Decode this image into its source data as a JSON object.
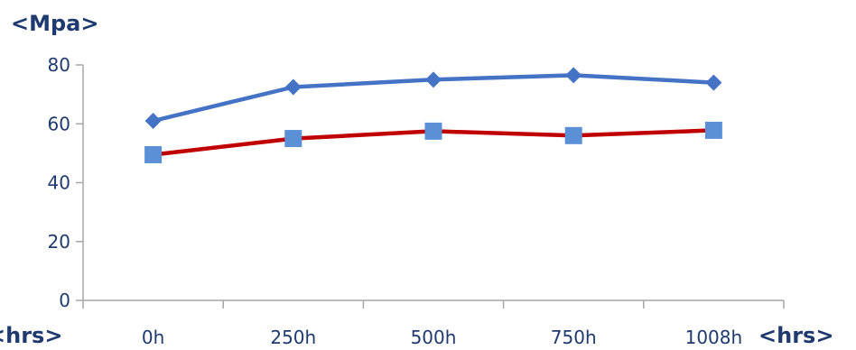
{
  "chart_data": {
    "type": "line",
    "categories": [
      "0h",
      "250h",
      "500h",
      "750h",
      "1008h"
    ],
    "series": [
      {
        "values": [
          61,
          72.5,
          75,
          76.5,
          74
        ],
        "color": "#4472c4",
        "marker": "diamond"
      },
      {
        "values": [
          49.5,
          55,
          57.5,
          56,
          57.8
        ],
        "color": "#c00000",
        "marker": "square",
        "marker_color": "#5b8fd6"
      }
    ],
    "yticks": [
      0,
      20,
      40,
      60,
      80
    ],
    "ylim": [
      0,
      80
    ],
    "ylabel": "<Mpa>",
    "xlabel": "<hrs>",
    "xlabel_left": "<hrs>",
    "grid": false,
    "legend": "none"
  }
}
